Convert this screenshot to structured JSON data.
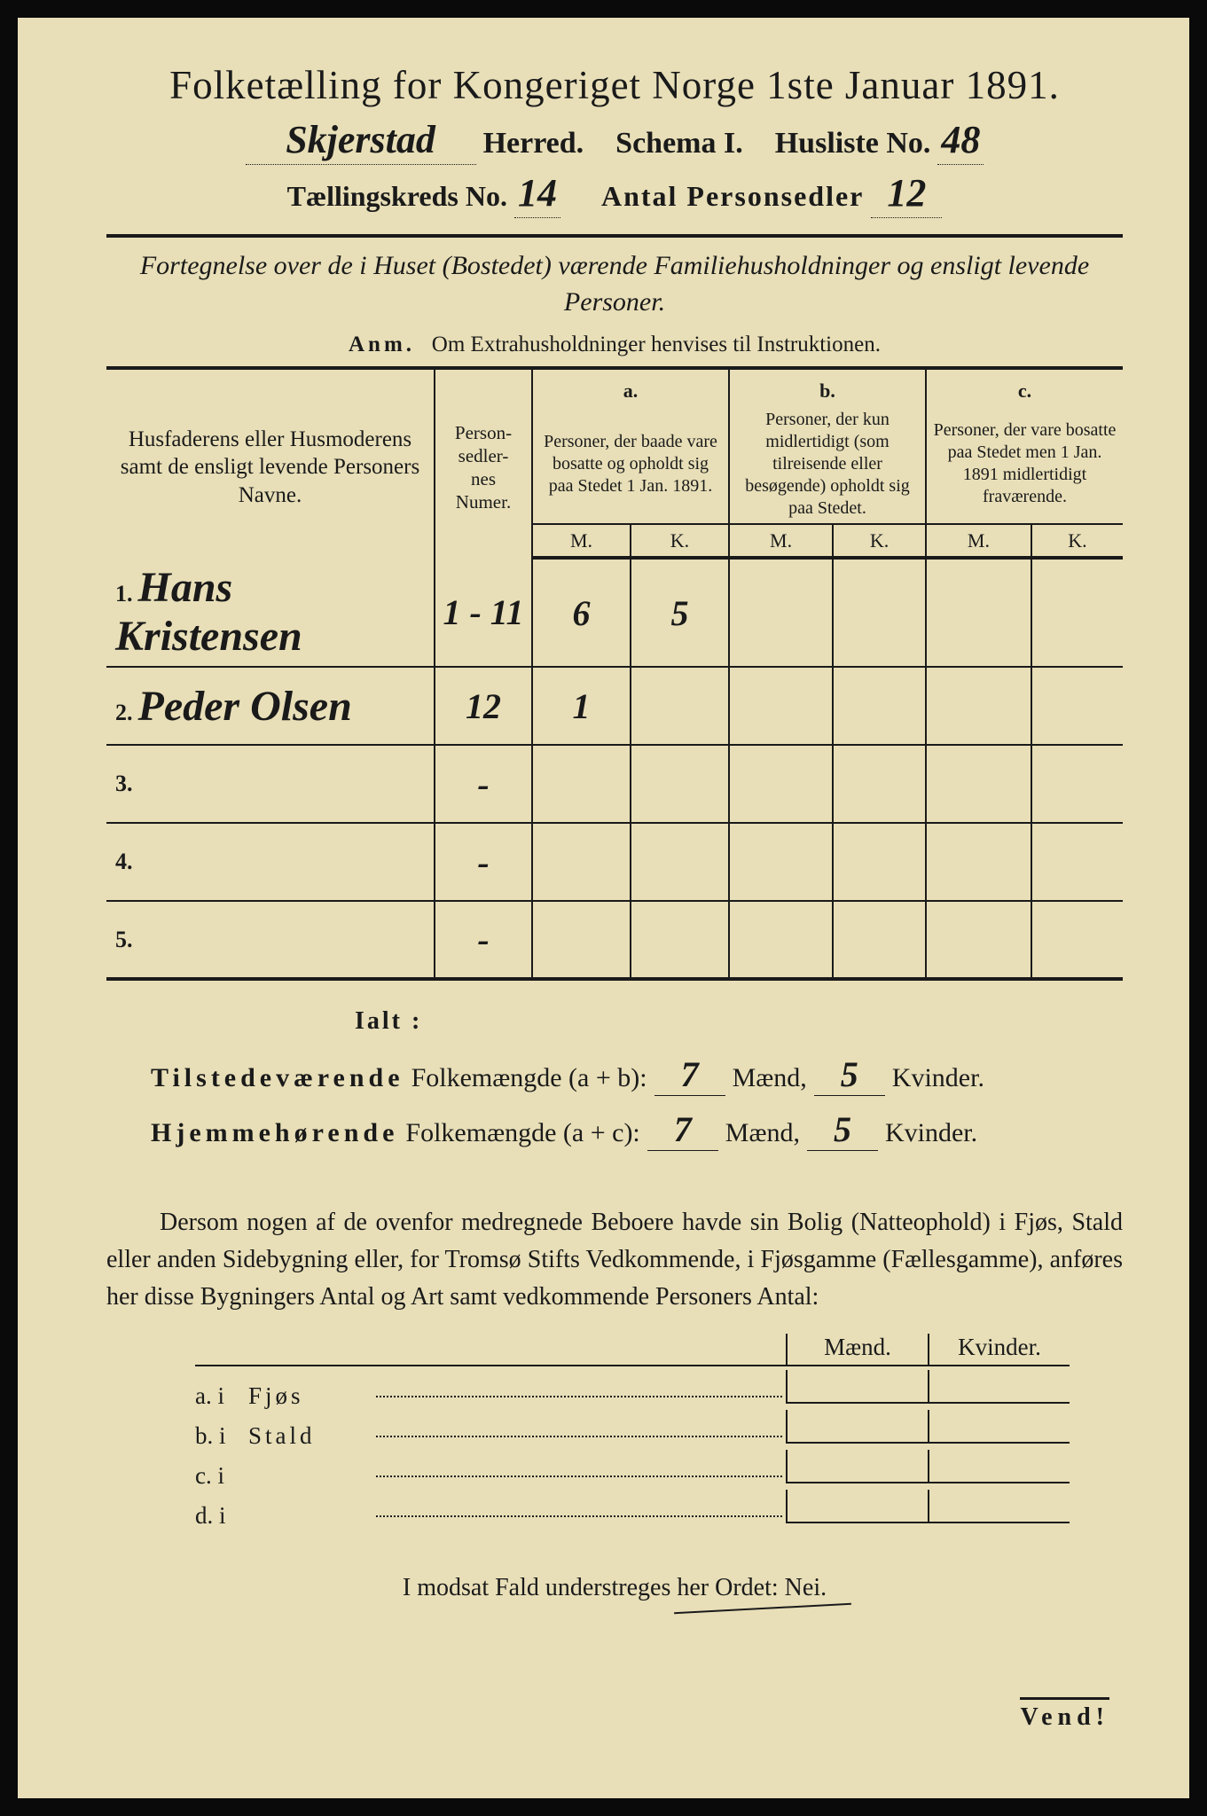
{
  "colors": {
    "paper": "#e8dfb8",
    "ink": "#1a1a1a",
    "frame": "#0a0a0a"
  },
  "header": {
    "title": "Folketælling for Kongeriget Norge 1ste Januar 1891.",
    "herred_handwritten": "Skjerstad",
    "herred_label": "Herred.",
    "schema_label": "Schema I.",
    "husliste_label": "Husliste No.",
    "husliste_no": "48",
    "kreds_label": "Tællingskreds No.",
    "kreds_no": "14",
    "antal_label": "Antal Personsedler",
    "antal_val": "12"
  },
  "subtitle": "Fortegnelse over de i Huset (Bostedet) værende Familiehusholdninger og ensligt levende Personer.",
  "anm": {
    "label": "Anm.",
    "text": "Om Extrahusholdninger henvises til Instruktionen."
  },
  "table": {
    "col_name": "Husfaderens eller Husmoderens samt de ensligt levende Personers Navne.",
    "col_numer": "Person-\nsedler-\nnes\nNumer.",
    "col_a_top": "a.",
    "col_a": "Personer, der baade vare bosatte og opholdt sig paa Stedet 1 Jan. 1891.",
    "col_b_top": "b.",
    "col_b": "Personer, der kun midlertidigt (som tilreisende eller besøgende) opholdt sig paa Stedet.",
    "col_c_top": "c.",
    "col_c": "Personer, der vare bosatte paa Stedet men 1 Jan. 1891 midlertidigt fraværende.",
    "mk_m": "M.",
    "mk_k": "K.",
    "rows": [
      {
        "n": "1.",
        "name": "Hans Kristensen",
        "numer": "1 - 11",
        "a_m": "6",
        "a_k": "5",
        "b_m": "",
        "b_k": "",
        "c_m": "",
        "c_k": ""
      },
      {
        "n": "2.",
        "name": "Peder Olsen",
        "numer": "12",
        "a_m": "1",
        "a_k": "",
        "b_m": "",
        "b_k": "",
        "c_m": "",
        "c_k": ""
      },
      {
        "n": "3.",
        "name": "",
        "numer": "-",
        "a_m": "",
        "a_k": "",
        "b_m": "",
        "b_k": "",
        "c_m": "",
        "c_k": ""
      },
      {
        "n": "4.",
        "name": "",
        "numer": "-",
        "a_m": "",
        "a_k": "",
        "b_m": "",
        "b_k": "",
        "c_m": "",
        "c_k": ""
      },
      {
        "n": "5.",
        "name": "",
        "numer": "-",
        "a_m": "",
        "a_k": "",
        "b_m": "",
        "b_k": "",
        "c_m": "",
        "c_k": ""
      }
    ]
  },
  "totals": {
    "ialt": "Ialt :",
    "line1_label": "Tilstedeværende",
    "line1_rest": "Folkemængde (a + b):",
    "line2_label": "Hjemmehørende",
    "line2_rest": "Folkemængde (a + c):",
    "maend": "Mænd,",
    "kvinder": "Kvinder.",
    "ab_m": "7",
    "ab_k": "5",
    "ac_m": "7",
    "ac_k": "5"
  },
  "para": "Dersom nogen af de ovenfor medregnede Beboere havde sin Bolig (Natteophold) i Fjøs, Stald eller anden Sidebygning eller, for Tromsø Stifts Vedkommende, i Fjøsgamme (Fællesgamme), anføres her disse Bygningers Antal og Art samt vedkommende Personers Antal:",
  "bygning": {
    "head_m": "Mænd.",
    "head_k": "Kvinder.",
    "rows": [
      {
        "lbl": "a.  i",
        "type": "Fjøs"
      },
      {
        "lbl": "b.  i",
        "type": "Stald"
      },
      {
        "lbl": "c.  i",
        "type": ""
      },
      {
        "lbl": "d.  i",
        "type": ""
      }
    ]
  },
  "nei": "I modsat Fald understreges her Ordet: Nei.",
  "vend": "Vend!"
}
